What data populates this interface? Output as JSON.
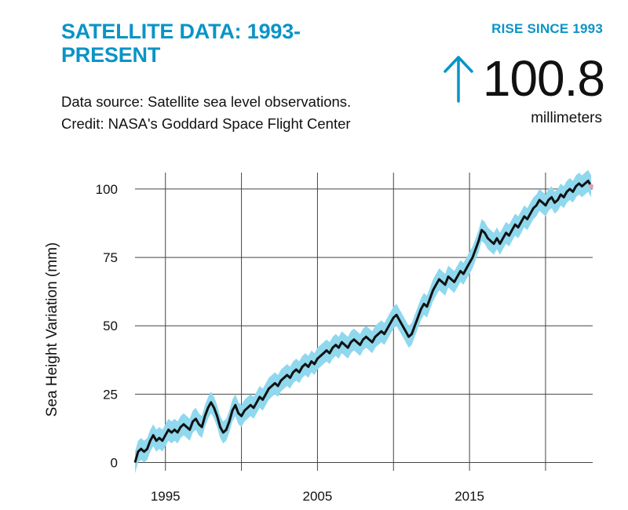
{
  "header": {
    "title": "SATELLITE DATA: 1993-PRESENT",
    "source_line": "Data source: Satellite sea level observations.",
    "credit_line": "Credit: NASA's Goddard Space Flight Center"
  },
  "rise": {
    "label": "RISE SINCE 1993",
    "value": "100.8",
    "unit": "millimeters",
    "icon": "up-arrow-icon",
    "accent_color": "#0a94c6"
  },
  "chart_data": {
    "type": "line",
    "ylabel": "Sea Height Variation (mm)",
    "xlim": [
      1993,
      2023.1
    ],
    "ylim": [
      -3,
      106
    ],
    "x_ticks": [
      1995,
      2005,
      2015
    ],
    "x_grid": [
      1995,
      2000,
      2005,
      2010,
      2015,
      2020
    ],
    "y_ticks": [
      0,
      25,
      50,
      75,
      100
    ],
    "grid": true,
    "uncertainty_band_mm": 4,
    "colors": {
      "line": "#111111",
      "band": "#8fd8ee",
      "grid": "#444444",
      "end_marker": "#e8a0a8"
    },
    "series": [
      {
        "x": [
          1993.0,
          1993.2,
          1993.4,
          1993.6,
          1993.8,
          1994.0,
          1994.2,
          1994.4,
          1994.6,
          1994.8,
          1995.0,
          1995.2,
          1995.4,
          1995.6,
          1995.8,
          1996.0,
          1996.2,
          1996.4,
          1996.6,
          1996.8,
          1997.0,
          1997.2,
          1997.4,
          1997.6,
          1997.8,
          1998.0,
          1998.2,
          1998.4,
          1998.6,
          1998.8,
          1999.0,
          1999.2,
          1999.4,
          1999.6,
          1999.8,
          2000.0,
          2000.2,
          2000.4,
          2000.6,
          2000.8,
          2001.0,
          2001.2,
          2001.4,
          2001.6,
          2001.8,
          2002.0,
          2002.2,
          2002.4,
          2002.6,
          2002.8,
          2003.0,
          2003.2,
          2003.4,
          2003.6,
          2003.8,
          2004.0,
          2004.2,
          2004.4,
          2004.6,
          2004.8,
          2005.0,
          2005.2,
          2005.4,
          2005.6,
          2005.8,
          2006.0,
          2006.2,
          2006.4,
          2006.6,
          2006.8,
          2007.0,
          2007.2,
          2007.4,
          2007.6,
          2007.8,
          2008.0,
          2008.2,
          2008.4,
          2008.6,
          2008.8,
          2009.0,
          2009.2,
          2009.4,
          2009.6,
          2009.8,
          2010.0,
          2010.2,
          2010.4,
          2010.6,
          2010.8,
          2011.0,
          2011.2,
          2011.4,
          2011.6,
          2011.8,
          2012.0,
          2012.2,
          2012.4,
          2012.6,
          2012.8,
          2013.0,
          2013.2,
          2013.4,
          2013.6,
          2013.8,
          2014.0,
          2014.2,
          2014.4,
          2014.6,
          2014.8,
          2015.0,
          2015.2,
          2015.4,
          2015.6,
          2015.8,
          2016.0,
          2016.2,
          2016.4,
          2016.6,
          2016.8,
          2017.0,
          2017.2,
          2017.4,
          2017.6,
          2017.8,
          2018.0,
          2018.2,
          2018.4,
          2018.6,
          2018.8,
          2019.0,
          2019.2,
          2019.4,
          2019.6,
          2019.8,
          2020.0,
          2020.2,
          2020.4,
          2020.6,
          2020.8,
          2021.0,
          2021.2,
          2021.4,
          2021.6,
          2021.8,
          2022.0,
          2022.2,
          2022.4,
          2022.6,
          2022.8,
          2023.0
        ],
        "y": [
          0,
          4,
          5,
          4,
          5,
          8,
          10,
          8,
          9,
          8,
          10,
          12,
          11,
          12,
          11,
          13,
          14,
          13,
          12,
          15,
          16,
          14,
          13,
          17,
          20,
          22,
          20,
          17,
          13,
          11,
          12,
          15,
          19,
          21,
          18,
          17,
          19,
          20,
          21,
          20,
          22,
          24,
          23,
          25,
          27,
          28,
          29,
          28,
          30,
          31,
          32,
          31,
          33,
          34,
          33,
          35,
          36,
          35,
          37,
          36,
          38,
          39,
          40,
          41,
          40,
          42,
          43,
          42,
          44,
          43,
          42,
          44,
          45,
          44,
          43,
          45,
          46,
          45,
          44,
          46,
          47,
          48,
          47,
          49,
          51,
          53,
          54,
          52,
          50,
          48,
          46,
          47,
          50,
          53,
          56,
          58,
          57,
          60,
          63,
          65,
          67,
          66,
          65,
          68,
          67,
          66,
          68,
          70,
          69,
          71,
          73,
          75,
          78,
          81,
          85,
          84,
          82,
          81,
          80,
          82,
          80,
          82,
          84,
          83,
          85,
          87,
          86,
          88,
          90,
          89,
          91,
          93,
          94,
          96,
          95,
          94,
          96,
          97,
          95,
          96,
          98,
          97,
          99,
          100,
          99,
          101,
          102,
          101,
          102,
          103,
          101
        ]
      }
    ]
  }
}
